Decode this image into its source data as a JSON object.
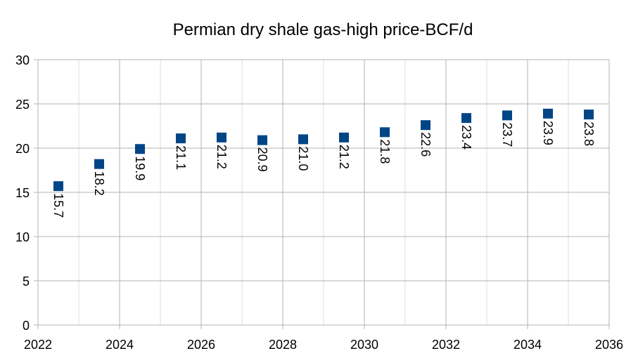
{
  "chart_data": {
    "type": "scatter",
    "title": "Permian dry shale gas-high price-BCF/d",
    "xlabel": "",
    "ylabel": "",
    "xlim": [
      2022,
      2036
    ],
    "ylim": [
      0,
      30
    ],
    "x_ticks": [
      "2022",
      "2024",
      "2026",
      "2028",
      "2030",
      "2032",
      "2034",
      "2036"
    ],
    "y_ticks": [
      "0",
      "5",
      "10",
      "15",
      "20",
      "25",
      "30"
    ],
    "grid": true,
    "legend": "none",
    "marker": "square",
    "marker_color": "#004586",
    "series": [
      {
        "name": "Permian dry shale gas-high price-BCF/d",
        "x": [
          2022.5,
          2023.5,
          2024.5,
          2025.5,
          2026.5,
          2027.5,
          2028.5,
          2029.5,
          2030.5,
          2031.5,
          2032.5,
          2033.5,
          2034.5,
          2035.5
        ],
        "values": [
          15.7,
          18.2,
          19.9,
          21.1,
          21.2,
          20.9,
          21.0,
          21.2,
          21.8,
          22.6,
          23.4,
          23.7,
          23.9,
          23.8
        ],
        "labels": [
          "15.7",
          "18.2",
          "19.9",
          "21.1",
          "21.2",
          "20.9",
          "21.0",
          "21.2",
          "21.8",
          "22.6",
          "23.4",
          "23.7",
          "23.9",
          "23.8"
        ]
      }
    ]
  }
}
